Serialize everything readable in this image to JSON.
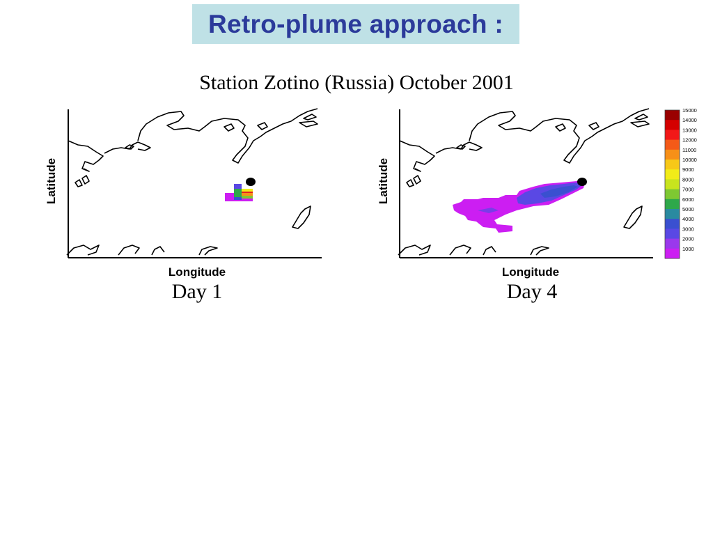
{
  "header": {
    "title": "Retro-plume approach :",
    "subtitle": "Station Zotino (Russia) October 2001"
  },
  "colors": {
    "title_background": "#bfe1e6",
    "title_text": "#2b3a9a",
    "station_marker": "#000000"
  },
  "panels": [
    {
      "name": "day-1",
      "day_label": "Day 1",
      "xlabel": "Longitude",
      "ylabel": "Latitude",
      "plume_levels": [
        "purple",
        "blue",
        "green",
        "yellow",
        "red"
      ]
    },
    {
      "name": "day-4",
      "day_label": "Day 4",
      "xlabel": "Longitude",
      "ylabel": "Latitude",
      "plume_levels": [
        "purple",
        "blue"
      ]
    }
  ],
  "colorbar": {
    "labels": [
      "15000",
      "14000",
      "13000",
      "12000",
      "11000",
      "10000",
      "9000",
      "8000",
      "7000",
      "6000",
      "5000",
      "4000",
      "3000",
      "2000",
      "1000"
    ],
    "colors": [
      "#9a0000",
      "#d40000",
      "#f21818",
      "#f45a18",
      "#f79018",
      "#f7c818",
      "#f2ec18",
      "#c8e41e",
      "#7ec832",
      "#2ea84a",
      "#2a8aa0",
      "#3a50d0",
      "#5a48e4",
      "#9a38ec",
      "#cc1ef2"
    ]
  }
}
